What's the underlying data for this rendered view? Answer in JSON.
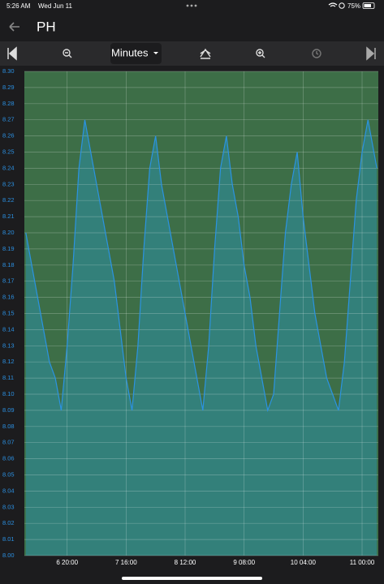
{
  "status": {
    "time": "5:26 AM",
    "date": "Wed Jun 11",
    "battery": "75%"
  },
  "header": {
    "title": "PH"
  },
  "toolbar": {
    "range": "Minutes"
  },
  "chart_data": {
    "type": "area",
    "x": [
      "6 06:00",
      "6 08:00",
      "6 10:00",
      "6 12:00",
      "6 14:00",
      "6 16:00",
      "6 18:00",
      "6 20:00",
      "6 22:00",
      "7 00:00",
      "7 02:00",
      "7 04:00",
      "7 06:00",
      "7 08:00",
      "7 10:00",
      "7 12:00",
      "7 14:00",
      "7 16:00",
      "7 18:00",
      "7 20:00",
      "7 22:00",
      "8 00:00",
      "8 02:00",
      "8 04:00",
      "8 06:00",
      "8 08:00",
      "8 10:00",
      "8 12:00",
      "8 14:00",
      "8 16:00",
      "8 18:00",
      "8 20:00",
      "8 22:00",
      "9 00:00",
      "9 02:00",
      "9 04:00",
      "9 06:00",
      "9 08:00",
      "9 10:00",
      "9 12:00",
      "9 14:00",
      "9 16:00",
      "9 18:00",
      "9 20:00",
      "9 22:00",
      "10 00:00",
      "10 02:00",
      "10 04:00",
      "10 06:00",
      "10 08:00",
      "10 10:00",
      "10 12:00",
      "10 14:00",
      "10 16:00",
      "10 18:00",
      "10 20:00",
      "10 22:00",
      "11 00:00",
      "11 02:00",
      "11 04:00",
      "11 05:00"
    ],
    "values": [
      8.2,
      8.18,
      8.16,
      8.14,
      8.12,
      8.11,
      8.09,
      8.13,
      8.18,
      8.24,
      8.27,
      8.25,
      8.23,
      8.21,
      8.19,
      8.17,
      8.14,
      8.11,
      8.09,
      8.13,
      8.19,
      8.24,
      8.26,
      8.23,
      8.21,
      8.19,
      8.17,
      8.15,
      8.13,
      8.11,
      8.09,
      8.13,
      8.19,
      8.24,
      8.26,
      8.23,
      8.21,
      8.18,
      8.16,
      8.13,
      8.11,
      8.09,
      8.1,
      8.15,
      8.2,
      8.23,
      8.25,
      8.21,
      8.18,
      8.15,
      8.13,
      8.11,
      8.1,
      8.09,
      8.12,
      8.17,
      8.22,
      8.25,
      8.27,
      8.25,
      8.24
    ],
    "line_color": "#2b93e2",
    "fill_color": "#33807a",
    "background": "#3d6e47",
    "grid": true,
    "xlim": [
      "6 05:30",
      "11 05:30"
    ],
    "xticks": [
      "6 20:00",
      "7 16:00",
      "8 12:00",
      "9 08:00",
      "10 04:00",
      "11 00:00"
    ],
    "ylim": [
      8.0,
      8.3
    ],
    "yticks": [
      {
        "value": 8.0,
        "label": "8.00"
      },
      {
        "value": 8.01,
        "label": "8.01"
      },
      {
        "value": 8.02,
        "label": "8.02"
      },
      {
        "value": 8.03,
        "label": "8.03"
      },
      {
        "value": 8.04,
        "label": "8.04"
      },
      {
        "value": 8.05,
        "label": "8.05"
      },
      {
        "value": 8.06,
        "label": "8.06"
      },
      {
        "value": 8.07,
        "label": "8.07"
      },
      {
        "value": 8.08,
        "label": "8.08"
      },
      {
        "value": 8.09,
        "label": "8.09"
      },
      {
        "value": 8.1,
        "label": "8.10"
      },
      {
        "value": 8.11,
        "label": "8.11"
      },
      {
        "value": 8.12,
        "label": "8.12"
      },
      {
        "value": 8.13,
        "label": "8.13"
      },
      {
        "value": 8.14,
        "label": "8.14"
      },
      {
        "value": 8.15,
        "label": "8.15"
      },
      {
        "value": 8.16,
        "label": "8.16"
      },
      {
        "value": 8.17,
        "label": "8.17"
      },
      {
        "value": 8.18,
        "label": "8.18"
      },
      {
        "value": 8.19,
        "label": "8.19"
      },
      {
        "value": 8.2,
        "label": "8.20"
      },
      {
        "value": 8.21,
        "label": "8.21"
      },
      {
        "value": 8.22,
        "label": "8.22"
      },
      {
        "value": 8.23,
        "label": "8.23"
      },
      {
        "value": 8.24,
        "label": "8.24"
      },
      {
        "value": 8.25,
        "label": "8.25"
      },
      {
        "value": 8.26,
        "label": "8.26"
      },
      {
        "value": 8.27,
        "label": "8.27"
      },
      {
        "value": 8.28,
        "label": "8.28"
      },
      {
        "value": 8.29,
        "label": "8.29"
      },
      {
        "value": 8.3,
        "label": "8.30"
      }
    ]
  }
}
